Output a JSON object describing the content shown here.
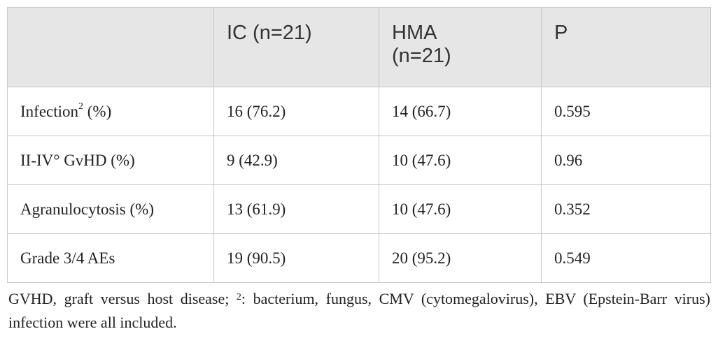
{
  "table": {
    "header": [
      "",
      "IC (n=21)",
      "HMA (n=21)",
      "P"
    ],
    "rows": [
      [
        {
          "text": "Infection",
          "sup": "2",
          "suffix": " (%)"
        },
        "16 (76.2)",
        "14 (66.7)",
        "0.595"
      ],
      [
        "II-IV° GvHD (%)",
        "9 (42.9)",
        "10 (47.6)",
        "0.96"
      ],
      [
        "Agranulocytosis (%)",
        "13 (61.9)",
        "10 (47.6)",
        "0.352"
      ],
      [
        "Grade 3/4 AEs",
        "19 (90.5)",
        "20 (95.2)",
        "0.549"
      ]
    ]
  },
  "footnote": {
    "text": "GVHD, graft versus host disease; ",
    "sup": "2",
    "suffix": ": bacterium, fungus, CMV (cytomegalovirus), EBV (Epstein-Barr virus) infection were all included."
  }
}
